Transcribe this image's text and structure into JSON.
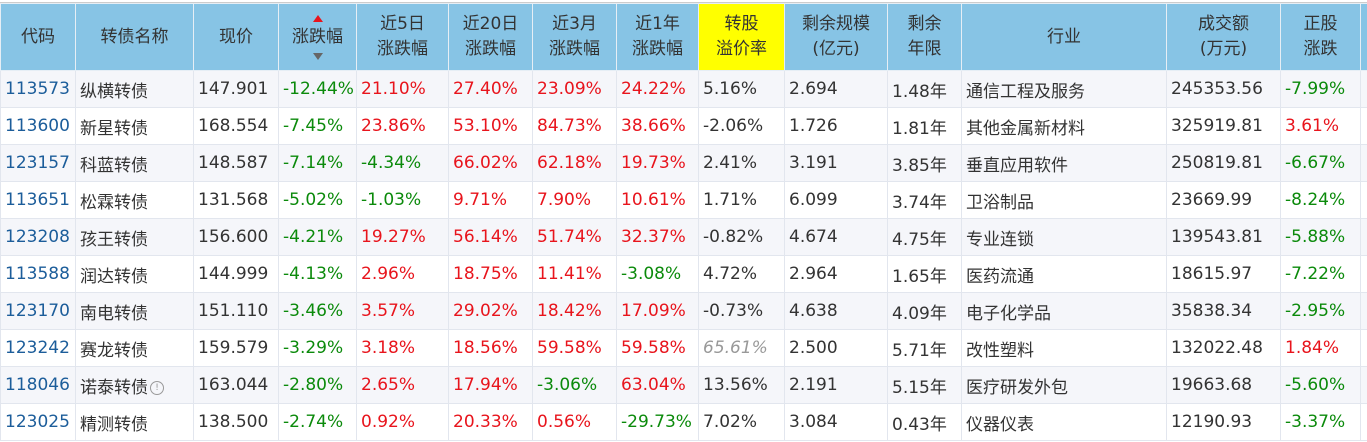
{
  "headers": [
    "代码",
    "转债名称",
    "现价",
    "涨跌幅",
    "近5日\n涨跌幅",
    "近20日\n涨跌幅",
    "近3月\n涨跌幅",
    "近1年\n涨跌幅",
    "转股\n溢价率",
    "剩余规模\n(亿元)",
    "剩余\n年限",
    "行业",
    "成交额\n(万元)",
    "正股\n涨跌"
  ],
  "highlight_color": "#ffff00",
  "colors": {
    "up": "#e8141c",
    "down": "#0b8a0b",
    "code": "#1c5d9a",
    "header": "#87c4e5"
  },
  "rows": [
    [
      "113573",
      "纵横转债",
      "147.901",
      "-12.44%",
      "21.10%",
      "27.40%",
      "23.09%",
      "24.22%",
      "5.16%",
      "2.694",
      "1.48年",
      "通信工程及服务",
      "245353.56",
      "-7.99%"
    ],
    [
      "113600",
      "新星转债",
      "168.554",
      "-7.45%",
      "23.86%",
      "53.10%",
      "84.73%",
      "38.66%",
      "-2.06%",
      "1.726",
      "1.81年",
      "其他金属新材料",
      "325919.81",
      "3.61%"
    ],
    [
      "123157",
      "科蓝转债",
      "148.587",
      "-7.14%",
      "-4.34%",
      "66.02%",
      "62.18%",
      "19.73%",
      "2.41%",
      "3.191",
      "3.85年",
      "垂直应用软件",
      "250819.81",
      "-6.67%"
    ],
    [
      "113651",
      "松霖转债",
      "131.568",
      "-5.02%",
      "-1.03%",
      "9.71%",
      "7.90%",
      "10.61%",
      "1.71%",
      "6.099",
      "3.74年",
      "卫浴制品",
      "23669.99",
      "-8.24%"
    ],
    [
      "123208",
      "孩王转债",
      "156.600",
      "-4.21%",
      "19.27%",
      "56.14%",
      "51.74%",
      "32.37%",
      "-0.82%",
      "4.674",
      "4.75年",
      "专业连锁",
      "139543.81",
      "-5.88%"
    ],
    [
      "113588",
      "润达转债",
      "144.999",
      "-4.13%",
      "2.96%",
      "18.75%",
      "11.41%",
      "-3.08%",
      "4.72%",
      "2.964",
      "1.65年",
      "医药流通",
      "18615.97",
      "-7.22%"
    ],
    [
      "123170",
      "南电转债",
      "151.110",
      "-3.46%",
      "3.57%",
      "29.02%",
      "18.42%",
      "17.09%",
      "-0.73%",
      "4.638",
      "4.09年",
      "电子化学品",
      "35838.34",
      "-2.95%"
    ],
    [
      "123242",
      "赛龙转债",
      "159.579",
      "-3.29%",
      "3.18%",
      "18.56%",
      "59.58%",
      "59.58%",
      "65.61%",
      "2.500",
      "5.71年",
      "改性塑料",
      "132022.48",
      "1.84%"
    ],
    [
      "118046",
      "诺泰转债",
      "163.044",
      "-2.80%",
      "2.65%",
      "17.94%",
      "-3.06%",
      "63.04%",
      "13.56%",
      "2.191",
      "5.15年",
      "医疗研发外包",
      "19663.68",
      "-5.60%"
    ],
    [
      "123025",
      "精测转债",
      "138.500",
      "-2.74%",
      "0.92%",
      "20.33%",
      "0.56%",
      "-29.73%",
      "7.02%",
      "3.084",
      "0.43年",
      "仪器仪表",
      "12190.93",
      "-3.37%"
    ]
  ],
  "info_icon": {
    "row": 8,
    "glyph": "!"
  },
  "gray_cell": {
    "row": 7,
    "col": 8
  }
}
